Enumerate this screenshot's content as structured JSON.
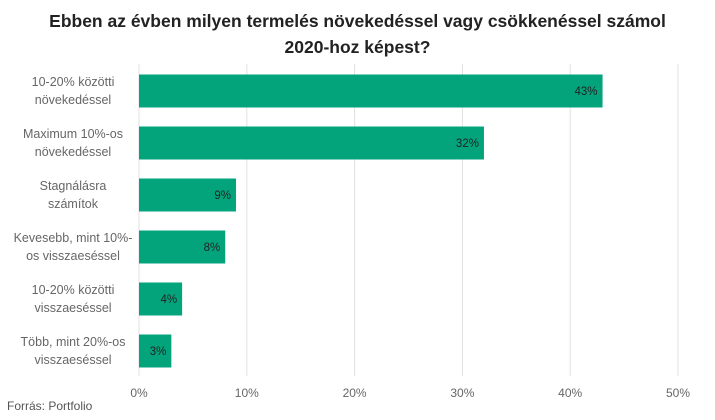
{
  "chart_data": {
    "type": "bar",
    "orientation": "horizontal",
    "title_lines": [
      "Ebben az évben milyen termelés növekedéssel vagy csökkenéssel számol",
      "2020-hoz képest?"
    ],
    "categories": [
      [
        "10-20% közötti",
        "növekedéssel"
      ],
      [
        "Maximum 10%-os",
        "növekedéssel"
      ],
      [
        "Stagnálásra",
        "számítok"
      ],
      [
        "Kevesebb, mint 10%-",
        "os visszaeséssel"
      ],
      [
        "10-20% közötti",
        "visszaeséssel"
      ],
      [
        "Több, mint 20%-os",
        "visszaeséssel"
      ]
    ],
    "values": [
      43,
      32,
      9,
      8,
      4,
      3
    ],
    "value_labels": [
      "43%",
      "32%",
      "9%",
      "8%",
      "4%",
      "3%"
    ],
    "xlim": [
      0,
      50
    ],
    "xticks": [
      0,
      10,
      20,
      30,
      40,
      50
    ],
    "xtick_labels": [
      "0%",
      "10%",
      "20%",
      "30%",
      "40%",
      "50%"
    ],
    "bar_color": "#03a47c",
    "grid": true
  },
  "source": "Forrás: Portfolio",
  "colors": {
    "title": "#222222",
    "labels": "#666666",
    "grid": "#e0e0e0",
    "value_text": "#222222"
  }
}
